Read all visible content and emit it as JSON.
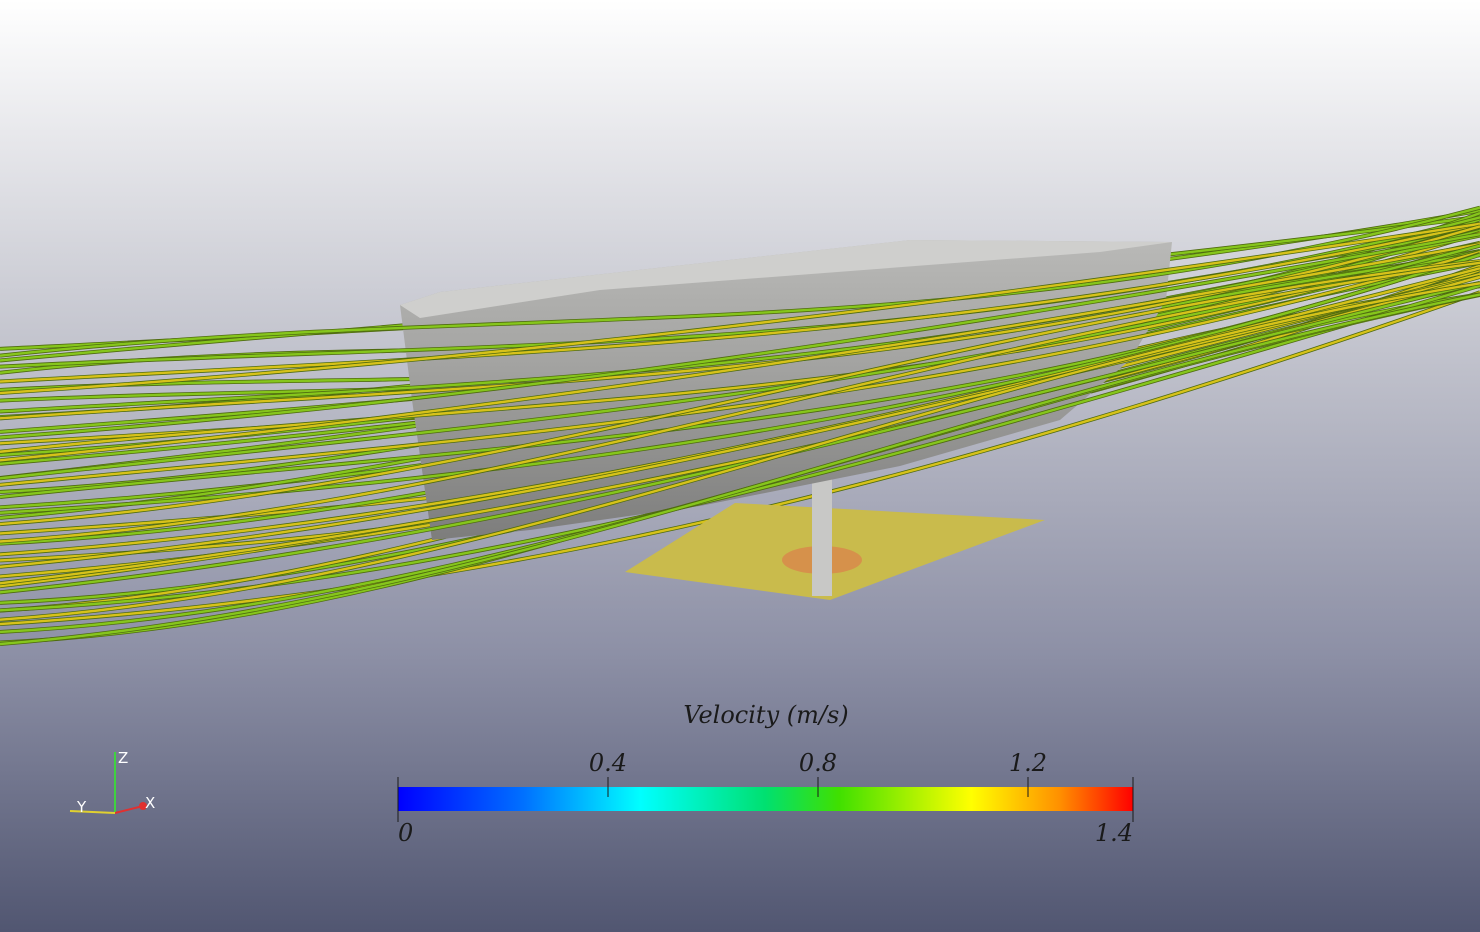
{
  "colorbar": {
    "title": "Velocity (m/s)",
    "range": [
      0,
      1.4
    ],
    "ticks": [
      0.4,
      0.8,
      1.2
    ]
  },
  "axes_triad": {
    "z": "Z",
    "y": "Y",
    "x": "X"
  }
}
